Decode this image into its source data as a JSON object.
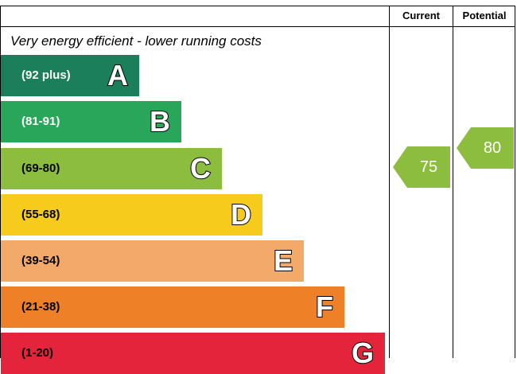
{
  "columns": {
    "current": "Current",
    "potential": "Potential"
  },
  "subtitle": "Very energy efficient - lower running costs",
  "bands": [
    {
      "range": "(92 plus)",
      "letter": "A",
      "color": "#1a7f5a"
    },
    {
      "range": "(81-91)",
      "letter": "B",
      "color": "#2aa65a"
    },
    {
      "range": "(69-80)",
      "letter": "C",
      "color": "#8dbd3f"
    },
    {
      "range": "(55-68)",
      "letter": "D",
      "color": "#f6cb1b"
    },
    {
      "range": "(39-54)",
      "letter": "E",
      "color": "#f3a96a"
    },
    {
      "range": "(21-38)",
      "letter": "F",
      "color": "#ee8128"
    },
    {
      "range": "(1-20)",
      "letter": "G",
      "color": "#e4243b"
    }
  ],
  "current": {
    "value": "75",
    "color": "#8dbd3f"
  },
  "potential": {
    "value": "80",
    "color": "#8dbd3f"
  }
}
